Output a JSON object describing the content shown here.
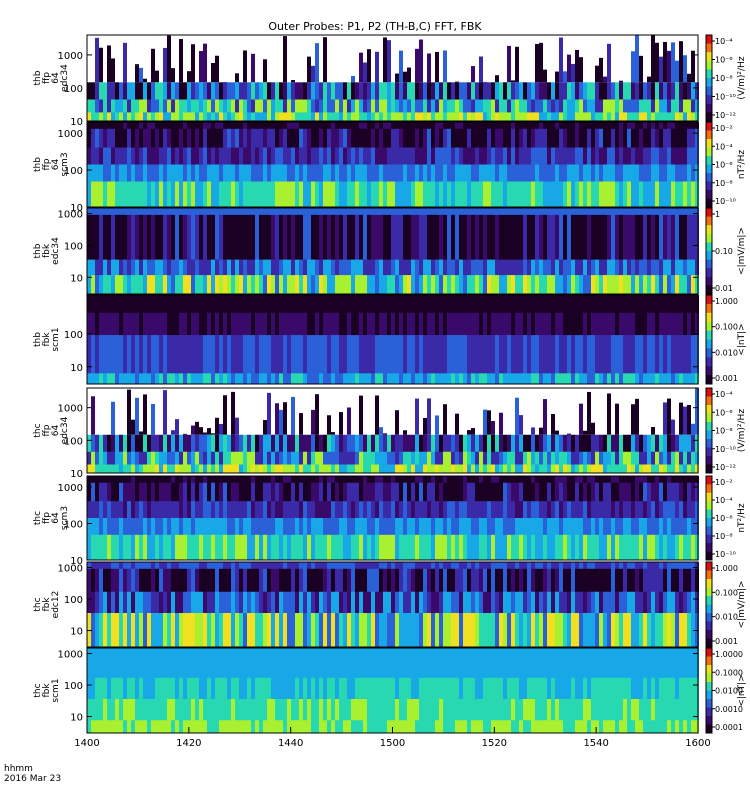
{
  "chart_data": {
    "type": "heatmap",
    "title": "Outer Probes: P1, P2 (TH-B,C) FFT, FBK",
    "x_ticks": [
      "1400",
      "1420",
      "1440",
      "1500",
      "1520",
      "1540",
      "1600"
    ],
    "x_range": [
      "14:00",
      "16:00"
    ],
    "corner_label_1": "hhmm",
    "corner_label_2": "2016 Mar 23",
    "panels": [
      {
        "id": "thb-ffp-64-edc34",
        "ylabels": [
          "thb",
          "ffp",
          "64",
          "edc34"
        ],
        "yticks": [
          "1000",
          "100",
          "10"
        ],
        "yrange": [
          10,
          4000
        ],
        "ylog": true,
        "cbar_label": "(V/m)²/Hz",
        "cbar_ticks": [
          "10⁻⁴",
          "10⁻⁶",
          "10⁻⁸",
          "10⁻¹⁰",
          "10⁻¹²"
        ],
        "cbar_range": [
          "1e-13",
          "1e-4"
        ]
      },
      {
        "id": "thb-ffp-64-scm3",
        "ylabels": [
          "thb",
          "ffp",
          "64",
          "scm3"
        ],
        "yticks": [
          "1000",
          "100",
          "10"
        ],
        "yrange": [
          10,
          2000
        ],
        "ylog": true,
        "cbar_label": "nT²/Hz",
        "cbar_ticks": [
          "10⁻²",
          "10⁻⁴",
          "10⁻⁶",
          "10⁻⁸",
          "10⁻¹⁰"
        ],
        "cbar_range": [
          "1e-10",
          "1e-2"
        ]
      },
      {
        "id": "thb-fbk-edc34",
        "ylabels": [
          "thb",
          "fbk",
          "edc34"
        ],
        "yticks": [
          "1000",
          "100",
          "10"
        ],
        "yrange": [
          3,
          1500
        ],
        "ylog": true,
        "cbar_label": "<|mV/m|>",
        "cbar_ticks": [
          "1",
          "0.10",
          "0.01"
        ],
        "cbar_range": [
          "0.005",
          "1"
        ]
      },
      {
        "id": "thb-fbk-scm1",
        "ylabels": [
          "thb",
          "fbk",
          "scm1"
        ],
        "yticks": [
          "100",
          "10"
        ],
        "yrange": [
          3,
          1500
        ],
        "ylog": true,
        "cbar_label": "<|nT|>",
        "cbar_ticks": [
          "1.000",
          "0.100",
          "0.010",
          "0.001"
        ],
        "cbar_range": [
          "0.001",
          "1"
        ]
      },
      {
        "id": "thc-ffp-64-edc34",
        "ylabels": [
          "thc",
          "ffp",
          "64",
          "edc34"
        ],
        "yticks": [
          "1000",
          "100",
          "10"
        ],
        "yrange": [
          10,
          4000
        ],
        "ylog": true,
        "cbar_label": "(V/m)²/Hz",
        "cbar_ticks": [
          "10⁻⁴",
          "10⁻⁶",
          "10⁻⁸",
          "10⁻¹⁰",
          "10⁻¹²"
        ],
        "cbar_range": [
          "1e-13",
          "1e-4"
        ]
      },
      {
        "id": "thc-ffp-64-scm3",
        "ylabels": [
          "thc",
          "ffp",
          "64",
          "scm3"
        ],
        "yticks": [
          "1000",
          "100",
          "10"
        ],
        "yrange": [
          10,
          2000
        ],
        "ylog": true,
        "cbar_label": "nT²/Hz",
        "cbar_ticks": [
          "10⁻²",
          "10⁻⁴",
          "10⁻⁶",
          "10⁻⁸",
          "10⁻¹⁰"
        ],
        "cbar_range": [
          "1e-10",
          "1e-2"
        ]
      },
      {
        "id": "thc-fbk-edc12",
        "ylabels": [
          "thc",
          "fbk",
          "edc12"
        ],
        "yticks": [
          "1000",
          "100",
          "10"
        ],
        "yrange": [
          3,
          1500
        ],
        "ylog": true,
        "cbar_label": "<|mV/m|>",
        "cbar_ticks": [
          "1.000",
          "0.100",
          "0.010",
          "0.001"
        ],
        "cbar_range": [
          "0.001",
          "1"
        ]
      },
      {
        "id": "thc-fbk-scm1",
        "ylabels": [
          "thc",
          "fbk",
          "scm1"
        ],
        "yticks": [
          "1000",
          "100",
          "10"
        ],
        "yrange": [
          3,
          1500
        ],
        "ylog": true,
        "cbar_label": "<|nT|>",
        "cbar_ticks": [
          "1.0000",
          "0.1000",
          "0.0100",
          "0.0010",
          "0.0001"
        ],
        "cbar_range": [
          "0.0001",
          "1"
        ]
      }
    ],
    "colors": {
      "scale": [
        "#1a0022",
        "#3a0a6a",
        "#3a2aa8",
        "#2a60d8",
        "#18a8e8",
        "#28d8b0",
        "#a8f030",
        "#f0e020",
        "#f07010",
        "#d81010"
      ],
      "background": "#ffffff",
      "axis": "#000000"
    }
  }
}
